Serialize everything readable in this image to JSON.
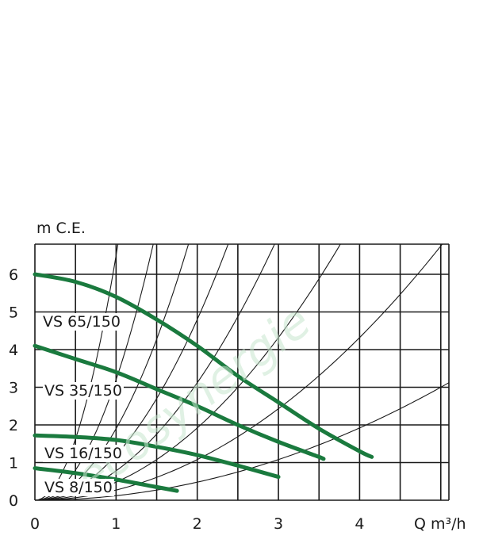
{
  "chart_data": {
    "type": "line",
    "ylabel": "m C.E.",
    "xlabel": "Q m³/h",
    "xlim": [
      0,
      5.1
    ],
    "ylim": [
      0,
      6.8
    ],
    "xticks": [
      "0",
      "1",
      "2",
      "3",
      "4"
    ],
    "yticks": [
      "0",
      "1",
      "2",
      "3",
      "4",
      "5",
      "6"
    ],
    "grid": true,
    "watermark": "ecosynergie",
    "series_color": "#1a7a3e",
    "system_curve_color": "#1a1a1a",
    "series": [
      {
        "name": "VS 65/150",
        "x": [
          0,
          0.5,
          1,
          1.5,
          2,
          2.5,
          3,
          3.5,
          4,
          4.15
        ],
        "y": [
          6.0,
          5.8,
          5.4,
          4.8,
          4.1,
          3.3,
          2.6,
          1.9,
          1.3,
          1.15
        ]
      },
      {
        "name": "VS 35/150",
        "x": [
          0,
          0.5,
          1,
          1.5,
          2,
          2.5,
          3,
          3.5,
          3.55
        ],
        "y": [
          4.1,
          3.75,
          3.4,
          2.95,
          2.5,
          2.0,
          1.55,
          1.15,
          1.1
        ]
      },
      {
        "name": "VS 16/150",
        "x": [
          0,
          0.5,
          1,
          1.5,
          2,
          2.5,
          3
        ],
        "y": [
          1.72,
          1.68,
          1.6,
          1.42,
          1.2,
          0.92,
          0.62
        ]
      },
      {
        "name": "VS 8/150",
        "x": [
          0,
          0.5,
          1,
          1.5,
          1.75
        ],
        "y": [
          0.85,
          0.72,
          0.55,
          0.35,
          0.25
        ]
      }
    ],
    "system_curves": [
      {
        "k": 0.12
      },
      {
        "k": 0.27
      },
      {
        "k": 0.48
      },
      {
        "k": 0.78
      },
      {
        "k": 1.2
      },
      {
        "k": 1.9
      },
      {
        "k": 3.2
      },
      {
        "k": 6.5
      }
    ]
  }
}
